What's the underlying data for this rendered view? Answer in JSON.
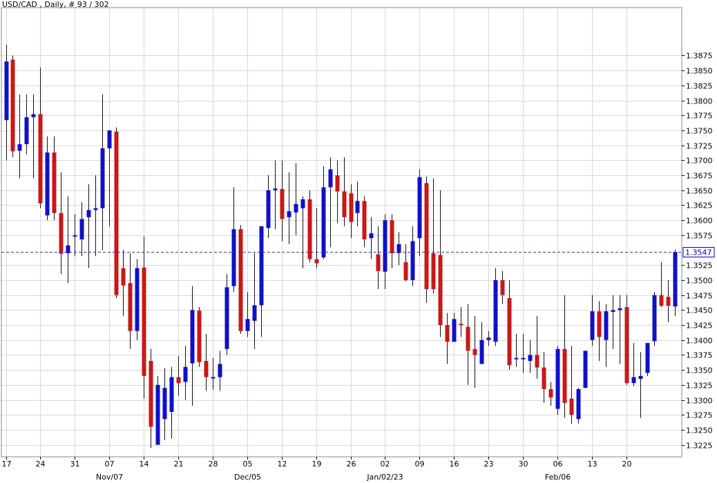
{
  "header": {
    "title": "USD/CAD , Daily, # 93 / 302"
  },
  "colors": {
    "up": "#1010c8",
    "down": "#c81818",
    "grid": "#d8d8d8",
    "last_line": "#3333aa",
    "wick": "#111111"
  },
  "chart_data": {
    "type": "candlestick",
    "title": "USD/CAD , Daily, # 93 / 302",
    "ylim": [
      1.3205,
      1.3955
    ],
    "y_ticks": [
      "1.3875",
      "1.3850",
      "1.3825",
      "1.3800",
      "1.3775",
      "1.3750",
      "1.3725",
      "1.3700",
      "1.3675",
      "1.3650",
      "1.3625",
      "1.3600",
      "1.3575",
      "1.3525",
      "1.3500",
      "1.3475",
      "1.3450",
      "1.3425",
      "1.3400",
      "1.3375",
      "1.3350",
      "1.3325",
      "1.3300",
      "1.3275",
      "1.3250",
      "1.3225"
    ],
    "x_ticks": [
      {
        "label": "17",
        "index": 0
      },
      {
        "label": "24",
        "index": 5
      },
      {
        "label": "31",
        "index": 10
      },
      {
        "label": "07",
        "index": 15
      },
      {
        "label": "14",
        "index": 20
      },
      {
        "label": "21",
        "index": 25
      },
      {
        "label": "28",
        "index": 30
      },
      {
        "label": "05",
        "index": 35
      },
      {
        "label": "12",
        "index": 40
      },
      {
        "label": "19",
        "index": 45
      },
      {
        "label": "26",
        "index": 50
      },
      {
        "label": "02",
        "index": 55
      },
      {
        "label": "09",
        "index": 60
      },
      {
        "label": "16",
        "index": 65
      },
      {
        "label": "23",
        "index": 70
      },
      {
        "label": "30",
        "index": 75
      },
      {
        "label": "06",
        "index": 80
      },
      {
        "label": "13",
        "index": 85
      },
      {
        "label": "20",
        "index": 90
      }
    ],
    "x_month_labels": [
      {
        "label": "Nov/07",
        "index": 15
      },
      {
        "label": "Dec/05",
        "index": 35
      },
      {
        "label": "Jan/02/23",
        "index": 55
      },
      {
        "label": "Feb/06",
        "index": 80
      }
    ],
    "last_price": 1.3547,
    "last_price_label": "1.3547",
    "grid": true,
    "candles": [
      [
        1.3767,
        1.3893,
        1.37,
        1.3865
      ],
      [
        1.3868,
        1.3875,
        1.3705,
        1.3715
      ],
      [
        1.3716,
        1.381,
        1.367,
        1.3727
      ],
      [
        1.3727,
        1.381,
        1.371,
        1.3772
      ],
      [
        1.3772,
        1.381,
        1.367,
        1.3777
      ],
      [
        1.3777,
        1.3855,
        1.362,
        1.3628
      ],
      [
        1.3608,
        1.374,
        1.36,
        1.3713
      ],
      [
        1.3713,
        1.374,
        1.36,
        1.3612
      ],
      [
        1.3612,
        1.368,
        1.351,
        1.3544
      ],
      [
        1.3545,
        1.364,
        1.3495,
        1.3558
      ],
      [
        1.3575,
        1.361,
        1.354,
        1.3575
      ],
      [
        1.3568,
        1.363,
        1.354,
        1.3602
      ],
      [
        1.3605,
        1.366,
        1.352,
        1.3617
      ],
      [
        1.3617,
        1.3675,
        1.354,
        1.362
      ],
      [
        1.362,
        1.381,
        1.355,
        1.372
      ],
      [
        1.372,
        1.375,
        1.359,
        1.375
      ],
      [
        1.3748,
        1.3755,
        1.347,
        1.3475
      ],
      [
        1.352,
        1.355,
        1.344,
        1.3491
      ],
      [
        1.3495,
        1.3545,
        1.3385,
        1.3415
      ],
      [
        1.3415,
        1.3535,
        1.34,
        1.352
      ],
      [
        1.3521,
        1.3573,
        1.3302,
        1.334
      ],
      [
        1.3365,
        1.3385,
        1.322,
        1.3255
      ],
      [
        1.3225,
        1.334,
        1.3225,
        1.3325
      ],
      [
        1.3268,
        1.3353,
        1.3233,
        1.332
      ],
      [
        1.328,
        1.3355,
        1.3235,
        1.3338
      ],
      [
        1.3338,
        1.3373,
        1.3307,
        1.3328
      ],
      [
        1.333,
        1.339,
        1.33,
        1.3355
      ],
      [
        1.3361,
        1.349,
        1.329,
        1.345
      ],
      [
        1.3449,
        1.3455,
        1.3355,
        1.3363
      ],
      [
        1.3365,
        1.341,
        1.3315,
        1.3338
      ],
      [
        1.3338,
        1.337,
        1.3317,
        1.3338
      ],
      [
        1.3338,
        1.3382,
        1.3315,
        1.336
      ],
      [
        1.3385,
        1.351,
        1.3375,
        1.3488
      ],
      [
        1.349,
        1.3655,
        1.348,
        1.3585
      ],
      [
        1.3585,
        1.3592,
        1.341,
        1.3415
      ],
      [
        1.3415,
        1.348,
        1.3405,
        1.3435
      ],
      [
        1.3432,
        1.3545,
        1.3385,
        1.3458
      ],
      [
        1.3458,
        1.359,
        1.3405,
        1.359
      ],
      [
        1.3587,
        1.3675,
        1.357,
        1.365
      ],
      [
        1.365,
        1.37,
        1.3585,
        1.3653
      ],
      [
        1.3652,
        1.37,
        1.3565,
        1.3602
      ],
      [
        1.3605,
        1.368,
        1.356,
        1.3615
      ],
      [
        1.3613,
        1.3695,
        1.3575,
        1.3627
      ],
      [
        1.362,
        1.364,
        1.352,
        1.3635
      ],
      [
        1.3635,
        1.365,
        1.353,
        1.3535
      ],
      [
        1.3535,
        1.362,
        1.352,
        1.3528
      ],
      [
        1.3538,
        1.369,
        1.3535,
        1.3655
      ],
      [
        1.3655,
        1.3705,
        1.3555,
        1.3685
      ],
      [
        1.3675,
        1.37,
        1.3595,
        1.3648
      ],
      [
        1.3648,
        1.3705,
        1.359,
        1.3605
      ],
      [
        1.3645,
        1.366,
        1.357,
        1.3597
      ],
      [
        1.3612,
        1.3665,
        1.359,
        1.3632
      ],
      [
        1.3632,
        1.364,
        1.3555,
        1.3568
      ],
      [
        1.357,
        1.3605,
        1.3535,
        1.3578
      ],
      [
        1.3543,
        1.359,
        1.3485,
        1.3515
      ],
      [
        1.3514,
        1.361,
        1.3485,
        1.36
      ],
      [
        1.36,
        1.361,
        1.352,
        1.3545
      ],
      [
        1.3545,
        1.358,
        1.3525,
        1.356
      ],
      [
        1.353,
        1.356,
        1.3498,
        1.35
      ],
      [
        1.35,
        1.359,
        1.349,
        1.3565
      ],
      [
        1.357,
        1.3685,
        1.354,
        1.3672
      ],
      [
        1.3662,
        1.3673,
        1.3462,
        1.3485
      ],
      [
        1.3545,
        1.367,
        1.3478,
        1.3485
      ],
      [
        1.3542,
        1.365,
        1.3405,
        1.3425
      ],
      [
        1.3425,
        1.3445,
        1.336,
        1.3397
      ],
      [
        1.3397,
        1.3445,
        1.3397,
        1.3435
      ],
      [
        1.3427,
        1.3455,
        1.3405,
        1.3425
      ],
      [
        1.3422,
        1.346,
        1.3325,
        1.3382
      ],
      [
        1.3385,
        1.344,
        1.332,
        1.3375
      ],
      [
        1.336,
        1.343,
        1.336,
        1.34
      ],
      [
        1.34,
        1.3415,
        1.339,
        1.3404
      ],
      [
        1.3397,
        1.352,
        1.339,
        1.35
      ],
      [
        1.35,
        1.3515,
        1.346,
        1.3475
      ],
      [
        1.347,
        1.35,
        1.335,
        1.3358
      ],
      [
        1.3368,
        1.341,
        1.3355,
        1.337
      ],
      [
        1.337,
        1.341,
        1.3345,
        1.337
      ],
      [
        1.3365,
        1.34,
        1.3345,
        1.3375
      ],
      [
        1.3375,
        1.344,
        1.3335,
        1.3354
      ],
      [
        1.3354,
        1.338,
        1.3295,
        1.3318
      ],
      [
        1.3318,
        1.333,
        1.329,
        1.3304
      ],
      [
        1.3285,
        1.339,
        1.3275,
        1.3385
      ],
      [
        1.3385,
        1.3475,
        1.327,
        1.3295
      ],
      [
        1.3302,
        1.339,
        1.326,
        1.3275
      ],
      [
        1.3268,
        1.332,
        1.326,
        1.3318
      ],
      [
        1.332,
        1.338,
        1.332,
        1.3382
      ],
      [
        1.34,
        1.3475,
        1.339,
        1.3448
      ],
      [
        1.3448,
        1.3465,
        1.3365,
        1.3405
      ],
      [
        1.34,
        1.346,
        1.3355,
        1.3448
      ],
      [
        1.3447,
        1.3475,
        1.3385,
        1.345
      ],
      [
        1.345,
        1.3475,
        1.336,
        1.3453
      ],
      [
        1.3455,
        1.3475,
        1.3325,
        1.3328
      ],
      [
        1.3328,
        1.3395,
        1.3323,
        1.3338
      ],
      [
        1.3335,
        1.338,
        1.327,
        1.334
      ],
      [
        1.3345,
        1.3395,
        1.334,
        1.3395
      ],
      [
        1.3398,
        1.348,
        1.339,
        1.3475
      ],
      [
        1.3475,
        1.353,
        1.3455,
        1.3457
      ],
      [
        1.3472,
        1.35,
        1.343,
        1.3457
      ],
      [
        1.3456,
        1.3551,
        1.344,
        1.3547
      ]
    ]
  }
}
